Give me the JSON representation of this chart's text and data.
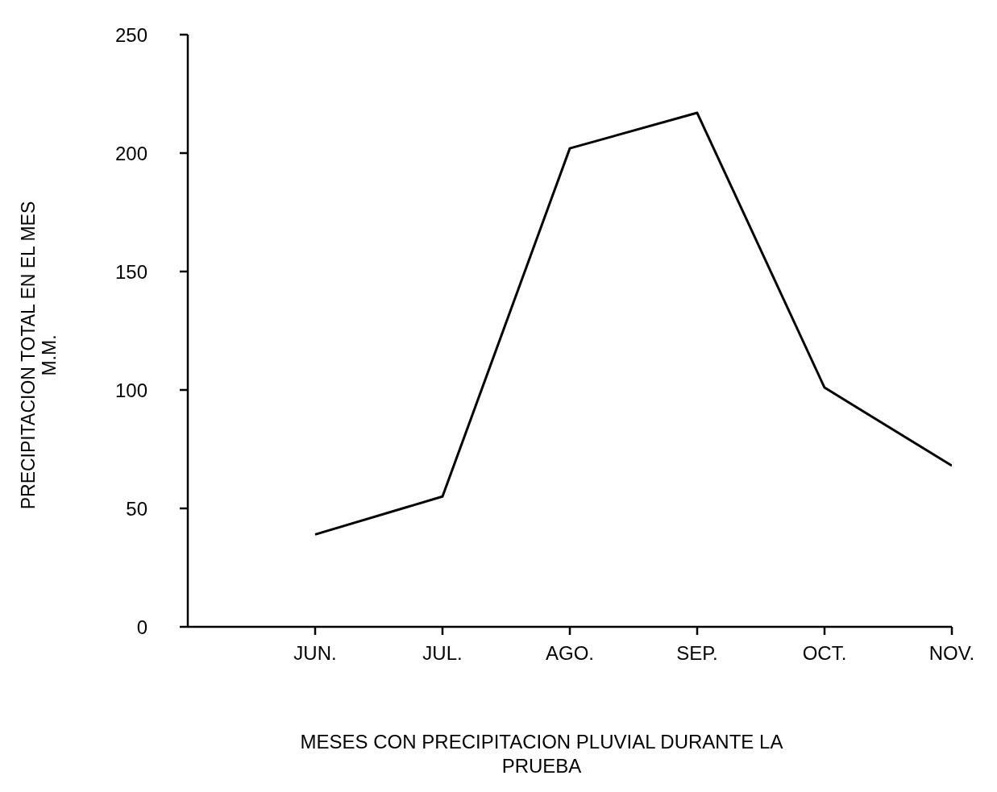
{
  "chart_data": {
    "type": "line",
    "xlabel": "MESES CON PRECIPITACION PLUVIAL DURANTE LA\nPRUEBA",
    "ylabel": "PRECIPITACION TOTAL EN EL MES\nM.M.",
    "categories": [
      null,
      "JUN.",
      "JUL.",
      "AGO.",
      "SEP.",
      "OCT.",
      "NOV."
    ],
    "series": [
      {
        "color": "#000000",
        "values": [
          null,
          39,
          55,
          202,
          217,
          101,
          68
        ]
      }
    ],
    "ylim": [
      0,
      250
    ],
    "yticks": [
      0,
      50,
      100,
      150,
      200,
      250
    ],
    "grid": false,
    "marker": "none",
    "line_style": "solid"
  }
}
